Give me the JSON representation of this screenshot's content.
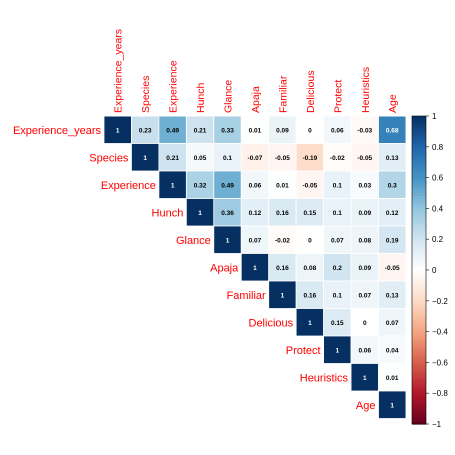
{
  "chart_data": {
    "type": "heatmap",
    "subtype": "upper-triangular correlation matrix",
    "variables": [
      "Experience_years",
      "Species",
      "Experience",
      "Hunch",
      "Glance",
      "Apaja",
      "Familiar",
      "Delicious",
      "Protect",
      "Heuristics",
      "Age"
    ],
    "matrix": [
      [
        1,
        0.23,
        0.49,
        0.21,
        0.33,
        0.01,
        0.09,
        0,
        0.06,
        -0.03,
        0.68
      ],
      [
        null,
        1,
        0.21,
        0.05,
        0.1,
        -0.07,
        -0.05,
        -0.19,
        -0.02,
        -0.05,
        0.13
      ],
      [
        null,
        null,
        1,
        0.32,
        0.49,
        0.06,
        0.01,
        -0.05,
        0.1,
        0.03,
        0.3
      ],
      [
        null,
        null,
        null,
        1,
        0.36,
        0.12,
        0.16,
        0.15,
        0.1,
        0.09,
        0.12
      ],
      [
        null,
        null,
        null,
        null,
        1,
        0.07,
        -0.02,
        0,
        0.07,
        0.08,
        0.19
      ],
      [
        null,
        null,
        null,
        null,
        null,
        1,
        0.16,
        0.08,
        0.2,
        0.09,
        -0.05
      ],
      [
        null,
        null,
        null,
        null,
        null,
        null,
        1,
        0.16,
        0.1,
        0.07,
        0.13
      ],
      [
        null,
        null,
        null,
        null,
        null,
        null,
        null,
        1,
        0.15,
        0,
        0.07
      ],
      [
        null,
        null,
        null,
        null,
        null,
        null,
        null,
        null,
        1,
        0.06,
        0.04
      ],
      [
        null,
        null,
        null,
        null,
        null,
        null,
        null,
        null,
        null,
        1,
        0.01
      ],
      [
        null,
        null,
        null,
        null,
        null,
        null,
        null,
        null,
        null,
        null,
        1
      ]
    ],
    "value_range": [
      -1,
      1
    ],
    "colorbar_ticks": [
      "1",
      "0.8",
      "0.6",
      "0.4",
      "0.2",
      "0",
      "−0.2",
      "−0.4",
      "−0.6",
      "−0.8",
      "−1"
    ],
    "colorscale": {
      "negative": "#67001F",
      "mid": "#FFFFFF",
      "positive": "#053061"
    },
    "label_color": "#FF0000",
    "legend_position": "right"
  }
}
